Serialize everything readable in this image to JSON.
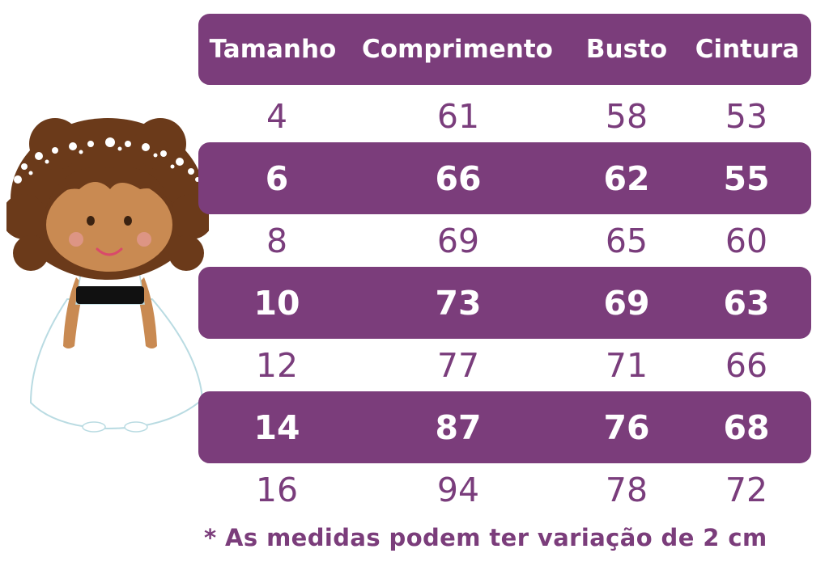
{
  "table": {
    "headers": [
      "Tamanho",
      "Comprimento",
      "Busto",
      "Cintura"
    ],
    "rows": [
      [
        "4",
        "61",
        "58",
        "53"
      ],
      [
        "6",
        "66",
        "62",
        "55"
      ],
      [
        "8",
        "69",
        "65",
        "60"
      ],
      [
        "10",
        "73",
        "69",
        "63"
      ],
      [
        "12",
        "77",
        "71",
        "66"
      ],
      [
        "14",
        "87",
        "76",
        "68"
      ],
      [
        "16",
        "94",
        "78",
        "72"
      ]
    ]
  },
  "footnote": "* As medidas podem ter variação de 2 cm",
  "colors": {
    "accent": "#7b3d7b",
    "text_light_rows": "#7a3d7c",
    "text_dark_rows": "#ffffff"
  },
  "illustration": {
    "icon": "girl-flower-dress-illustration"
  }
}
